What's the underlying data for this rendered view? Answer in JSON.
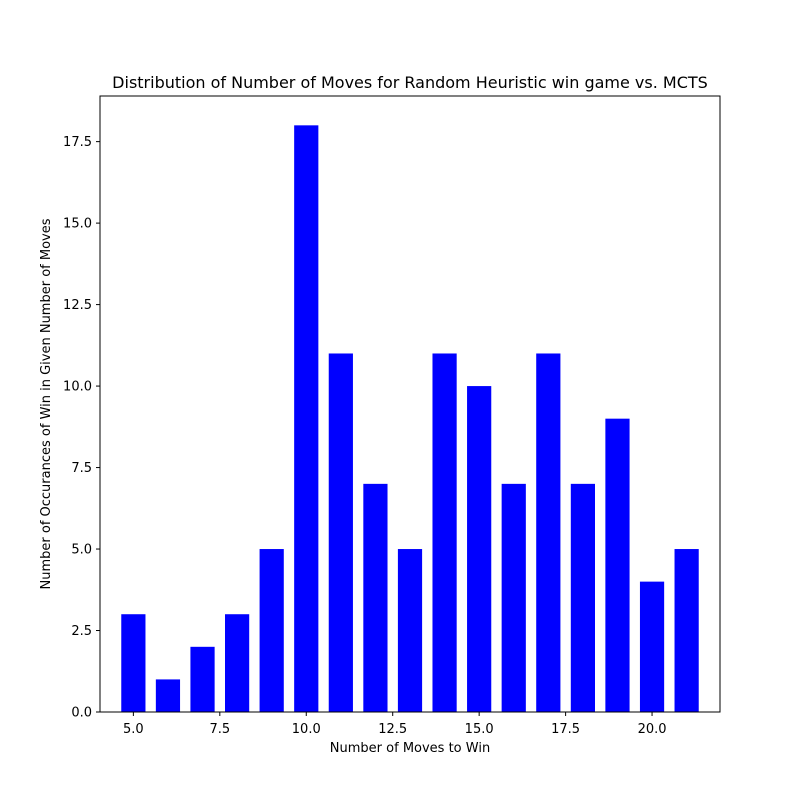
{
  "chart_data": {
    "type": "bar",
    "title": "Distribution of Number of Moves for Random Heuristic win game vs. MCTS",
    "xlabel": "Number of Moves to Win",
    "ylabel": "Number of Occurances of Win in Given Number of Moves",
    "x": [
      5,
      6,
      7,
      8,
      9,
      10,
      11,
      12,
      13,
      14,
      15,
      16,
      17,
      18,
      19,
      20,
      21
    ],
    "values": [
      3,
      1,
      2,
      3,
      5,
      18,
      11,
      7,
      5,
      11,
      10,
      7,
      11,
      7,
      9,
      4,
      5
    ],
    "bar_color": "#0000ff",
    "bar_width": 0.7,
    "xlim": [
      4.035,
      21.965
    ],
    "ylim": [
      0,
      18.9
    ],
    "xticks": [
      5.0,
      7.5,
      10.0,
      12.5,
      15.0,
      17.5,
      20.0
    ],
    "xtick_labels": [
      "5.0",
      "7.5",
      "10.0",
      "12.5",
      "15.0",
      "17.5",
      "20.0"
    ],
    "yticks": [
      0.0,
      2.5,
      5.0,
      7.5,
      10.0,
      12.5,
      15.0,
      17.5
    ],
    "ytick_labels": [
      "0.0",
      "2.5",
      "5.0",
      "7.5",
      "10.0",
      "12.5",
      "15.0",
      "17.5"
    ],
    "grid": false,
    "legend": false
  }
}
